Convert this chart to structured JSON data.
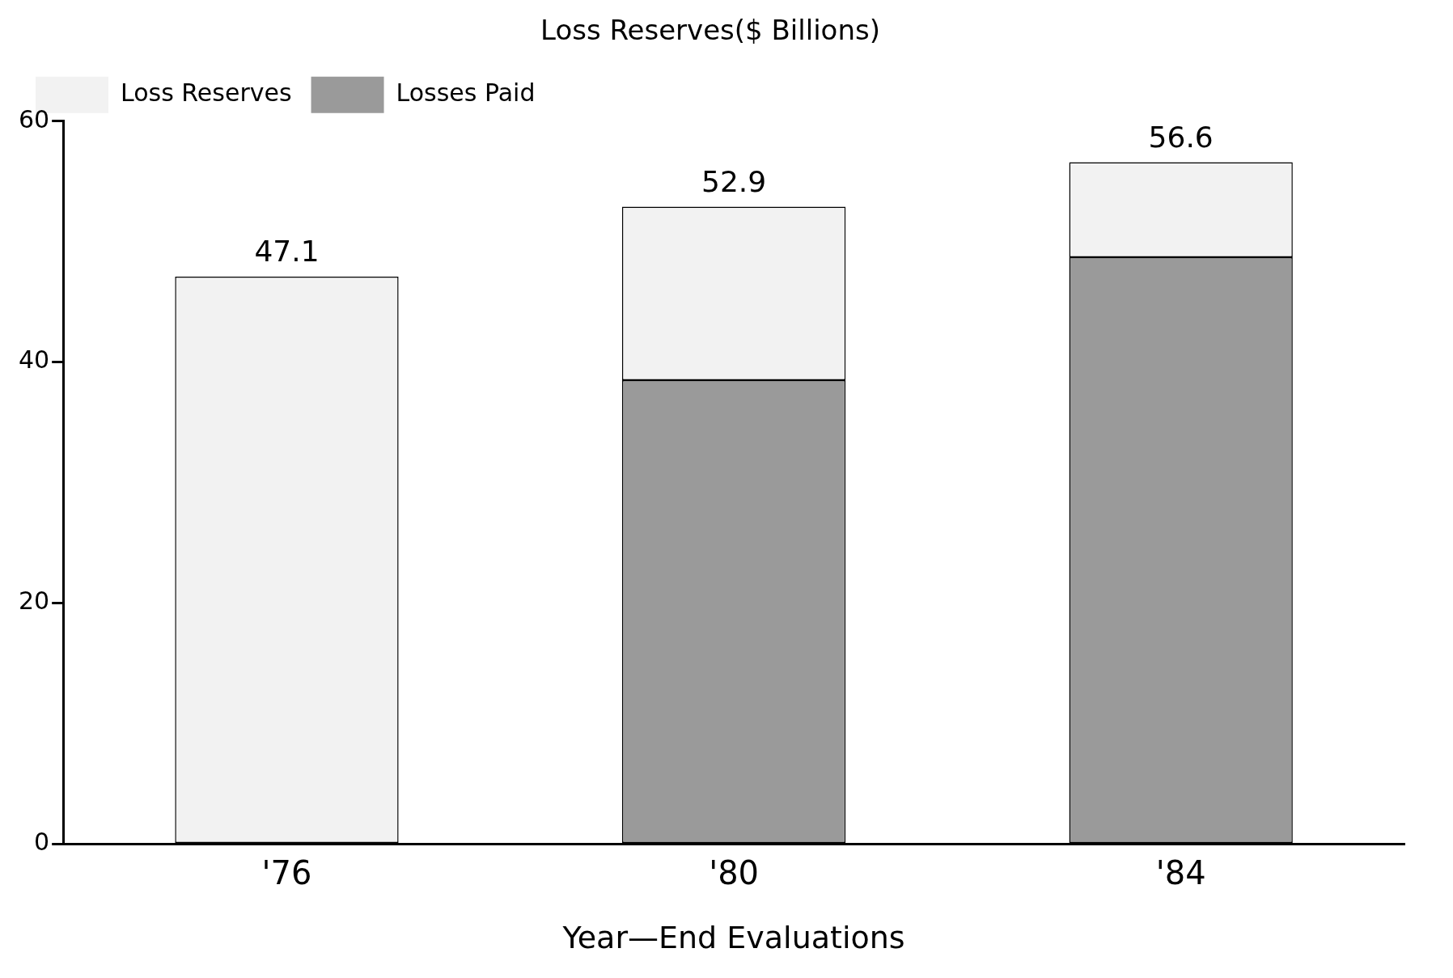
{
  "chart_data": {
    "type": "bar",
    "title": "Loss Reserves($ Billions)",
    "xlabel": "Year—End Evaluations",
    "categories": [
      "'76",
      "'80",
      "'84"
    ],
    "stacked": true,
    "series": [
      {
        "name": "Losses Paid",
        "color": "#9a9a9a",
        "values": [
          null,
          38.5,
          48.7
        ]
      },
      {
        "name": "Loss Reserves",
        "color": "#f2f2f2",
        "values": [
          47.1,
          14.4,
          7.9
        ]
      }
    ],
    "totals": [
      "47.1",
      "52.9",
      "56.6"
    ],
    "ylim": [
      0,
      60
    ],
    "yticks": [
      0,
      20,
      40,
      60
    ],
    "grid": false,
    "legend": "top left"
  }
}
